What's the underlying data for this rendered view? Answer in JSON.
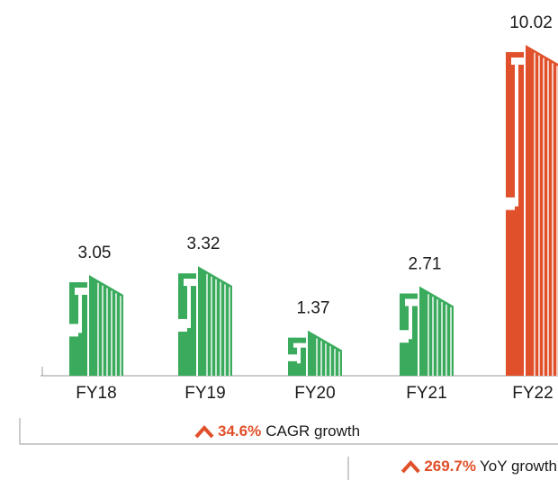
{
  "chart_data": {
    "type": "bar",
    "categories": [
      "FY18",
      "FY19",
      "FY20",
      "FY21",
      "FY22"
    ],
    "values": [
      3.05,
      3.32,
      1.37,
      2.71,
      10.02
    ],
    "colors": [
      "#3aaa5c",
      "#3aaa5c",
      "#3aaa5c",
      "#3aaa5c",
      "#e0502a"
    ],
    "annotations": [
      {
        "value_text": "34.6%",
        "text": "CAGR growth"
      },
      {
        "value_text": "269.7%",
        "text": "YoY growth"
      }
    ]
  }
}
